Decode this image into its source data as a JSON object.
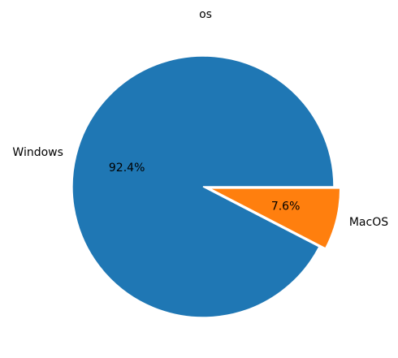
{
  "chart_data": {
    "type": "pie",
    "title": "os",
    "slices": [
      {
        "label": "Windows",
        "value": 92.4,
        "pct_label": "92.4%",
        "color": "#1f77b4",
        "exploded": false
      },
      {
        "label": "MacOS",
        "value": 7.6,
        "pct_label": "7.6%",
        "color": "#ff7f0e",
        "exploded": true
      }
    ],
    "start_angle_deg": 0,
    "direction": "counterclockwise",
    "legend": "none"
  }
}
